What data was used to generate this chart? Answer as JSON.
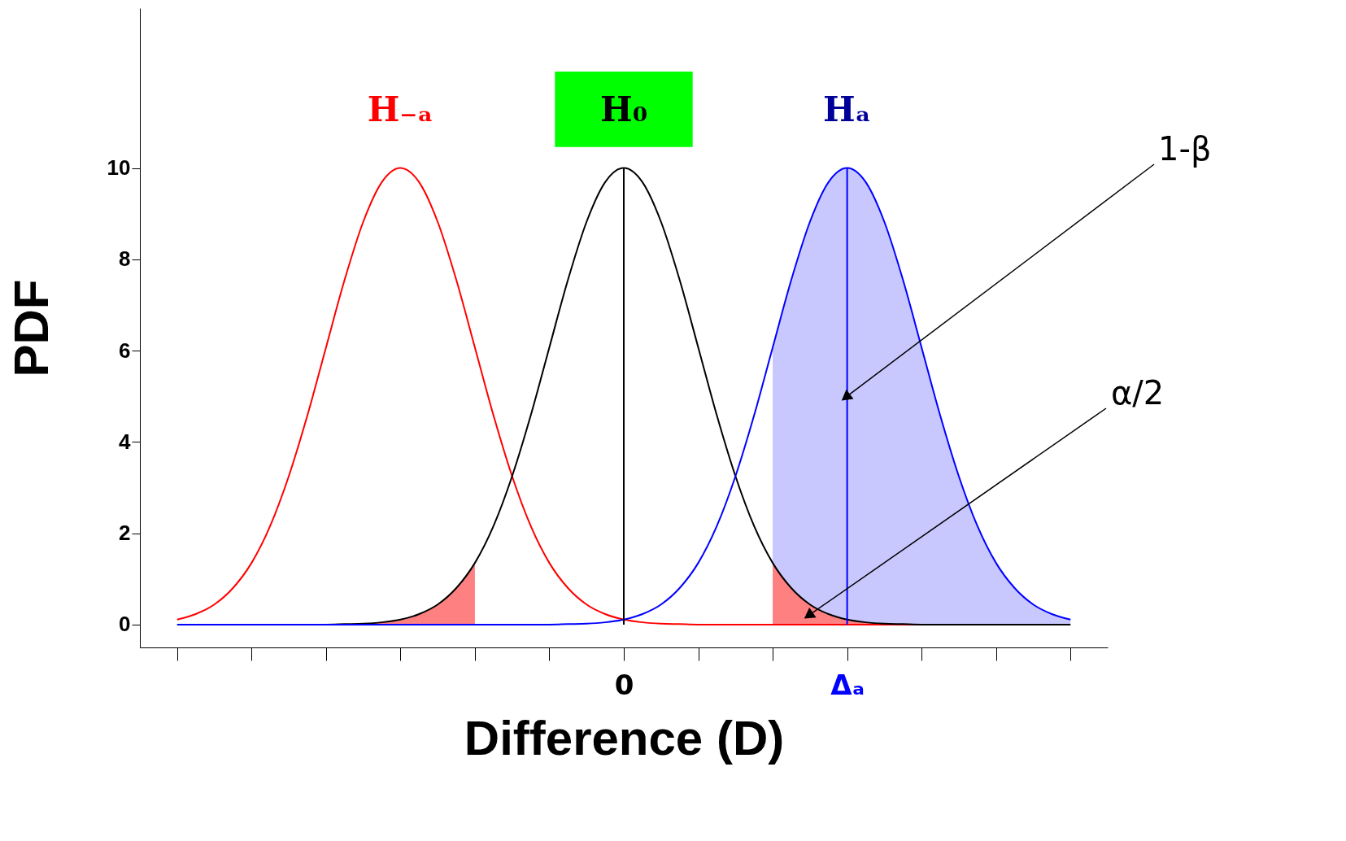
{
  "chart_data": {
    "type": "line",
    "xlabel": "Difference (D)",
    "ylabel": "PDF",
    "categories": [
      null,
      null,
      null,
      null,
      null,
      null,
      null,
      null,
      null,
      null,
      null,
      null,
      null,
      null,
      null,
      null,
      null,
      null,
      null,
      null,
      null,
      null,
      null,
      null,
      "0",
      null,
      null,
      null,
      null,
      null,
      null,
      null,
      null,
      null,
      null,
      null,
      "Δₐ",
      null,
      null,
      null,
      null,
      null,
      null,
      null,
      null,
      null,
      null,
      null,
      null
    ],
    "series": [
      {
        "type": "area",
        "color": "#c8c8ff",
        "values": [
          null,
          null,
          null,
          null,
          null,
          null,
          null,
          null,
          null,
          null,
          null,
          null,
          null,
          null,
          null,
          null,
          null,
          null,
          null,
          null,
          null,
          null,
          null,
          null,
          null,
          null,
          null,
          null,
          null,
          null,
          null,
          null,
          6.07,
          7.55,
          8.82,
          9.69,
          10,
          9.69,
          8.82,
          7.55,
          6.07,
          4.58,
          3.25,
          2.16,
          1.35,
          0.8,
          0.44,
          0.23,
          0.11
        ]
      },
      {
        "type": "area",
        "color": "#ff8080",
        "values": [
          null,
          null,
          null,
          null,
          null,
          null,
          null,
          null,
          0,
          0.01,
          0.02,
          0.05,
          0.11,
          0.23,
          0.44,
          0.8,
          1.35,
          null,
          null,
          null,
          null,
          null,
          null,
          null,
          null,
          null,
          null,
          null,
          null,
          null,
          null,
          null,
          null,
          null,
          null,
          null,
          null,
          null,
          null,
          null,
          null,
          null,
          null,
          null,
          null,
          null,
          null,
          null,
          null
        ]
      },
      {
        "type": "area",
        "color": "#ff8080",
        "values": [
          null,
          null,
          null,
          null,
          null,
          null,
          null,
          null,
          null,
          null,
          null,
          null,
          null,
          null,
          null,
          null,
          null,
          null,
          null,
          null,
          null,
          null,
          null,
          null,
          null,
          null,
          null,
          null,
          null,
          null,
          null,
          null,
          1.35,
          0.8,
          0.44,
          0.23,
          0.11,
          0.05,
          0.02,
          0.01,
          0,
          null,
          null,
          null,
          null,
          null,
          null,
          null,
          null
        ]
      },
      {
        "color": "#ff0000",
        "values": [
          0.11,
          0.23,
          0.44,
          0.8,
          1.35,
          2.16,
          3.25,
          4.58,
          6.07,
          7.55,
          8.82,
          9.69,
          10,
          9.69,
          8.82,
          7.55,
          6.07,
          4.58,
          3.25,
          2.16,
          1.35,
          0.8,
          0.44,
          0.23,
          0.11,
          0.05,
          0.02,
          0.01,
          0,
          0,
          0,
          0,
          0,
          0,
          0,
          0,
          0,
          0,
          0,
          0,
          0,
          null,
          null,
          null,
          null,
          null,
          null,
          null,
          null
        ]
      },
      {
        "color": "#000000",
        "values": [
          null,
          null,
          null,
          null,
          null,
          null,
          null,
          0,
          0,
          0.01,
          0.02,
          0.05,
          0.11,
          0.23,
          0.44,
          0.8,
          1.35,
          2.16,
          3.25,
          4.58,
          6.07,
          7.55,
          8.82,
          9.69,
          10,
          9.69,
          8.82,
          7.55,
          6.07,
          4.58,
          3.25,
          2.16,
          1.35,
          0.8,
          0.44,
          0.23,
          0.11,
          0.05,
          0.02,
          0.01,
          0,
          0,
          0,
          0,
          0,
          0,
          0,
          0,
          0
        ]
      },
      {
        "color": "#0000ff",
        "values": [
          0,
          0,
          0,
          0,
          0,
          0,
          0,
          0,
          0,
          0,
          0,
          0,
          0,
          0,
          0,
          0,
          0,
          0,
          0,
          0,
          0,
          0.01,
          0.02,
          0.05,
          0.11,
          0.23,
          0.44,
          0.8,
          1.35,
          2.16,
          3.25,
          4.58,
          6.07,
          7.55,
          8.82,
          9.69,
          10,
          9.69,
          8.82,
          7.55,
          6.07,
          4.58,
          3.25,
          2.16,
          1.35,
          0.8,
          0.44,
          0.23,
          0.11
        ]
      }
    ],
    "ylim": [
      -0.5,
      13.5
    ],
    "yticks": [
      0,
      2,
      4,
      6,
      8,
      10
    ],
    "ref_lines": [
      {
        "axis": "x",
        "value": "0",
        "color": "#000000"
      },
      {
        "axis": "x",
        "value": "Δₐ",
        "color": "#0000ff"
      }
    ],
    "annotations": [
      "H₋ₐ",
      "H₀",
      "Hₐ",
      "1-β",
      "α/2"
    ],
    "grid": false
  }
}
